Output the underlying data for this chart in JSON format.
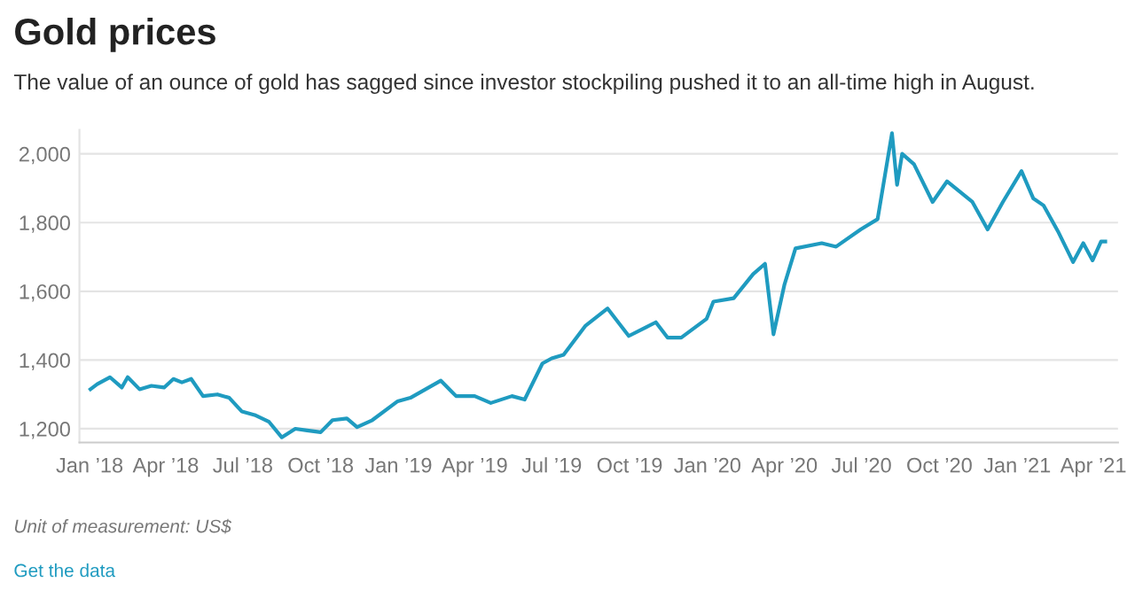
{
  "chart_data": {
    "type": "line",
    "title": "Gold prices",
    "subtitle": "The value of an ounce of gold has sagged since investor stockpiling pushed it to an all-time high in August.",
    "x": [
      "2018-01-02",
      "2018-01-10",
      "2018-01-25",
      "2018-02-08",
      "2018-02-15",
      "2018-03-01",
      "2018-03-15",
      "2018-03-30",
      "2018-04-10",
      "2018-04-20",
      "2018-05-01",
      "2018-05-15",
      "2018-06-01",
      "2018-06-15",
      "2018-06-30",
      "2018-07-15",
      "2018-08-01",
      "2018-08-16",
      "2018-09-01",
      "2018-09-15",
      "2018-10-01",
      "2018-10-15",
      "2018-11-01",
      "2018-11-13",
      "2018-12-01",
      "2018-12-31",
      "2019-01-15",
      "2019-02-20",
      "2019-03-10",
      "2019-04-01",
      "2019-04-20",
      "2019-05-15",
      "2019-05-30",
      "2019-06-20",
      "2019-07-01",
      "2019-07-15",
      "2019-08-10",
      "2019-09-05",
      "2019-09-30",
      "2019-10-20",
      "2019-11-01",
      "2019-11-15",
      "2019-12-01",
      "2019-12-31",
      "2020-01-08",
      "2020-02-01",
      "2020-02-24",
      "2020-03-09",
      "2020-03-19",
      "2020-04-01",
      "2020-04-14",
      "2020-05-15",
      "2020-06-01",
      "2020-06-30",
      "2020-07-20",
      "2020-08-06",
      "2020-08-12",
      "2020-08-18",
      "2020-09-01",
      "2020-09-23",
      "2020-10-10",
      "2020-11-09",
      "2020-11-27",
      "2020-12-15",
      "2021-01-06",
      "2021-01-20",
      "2021-02-01",
      "2021-02-18",
      "2021-03-08",
      "2021-03-20",
      "2021-03-31",
      "2021-04-10",
      "2021-04-15"
    ],
    "series": [
      {
        "color": "#1f9bc0",
        "values": [
          1315,
          1330,
          1350,
          1320,
          1350,
          1315,
          1325,
          1320,
          1345,
          1335,
          1345,
          1295,
          1300,
          1290,
          1250,
          1240,
          1220,
          1175,
          1200,
          1195,
          1190,
          1225,
          1230,
          1205,
          1225,
          1280,
          1290,
          1340,
          1295,
          1295,
          1275,
          1295,
          1285,
          1390,
          1405,
          1415,
          1500,
          1550,
          1470,
          1495,
          1510,
          1465,
          1465,
          1520,
          1570,
          1580,
          1650,
          1680,
          1475,
          1620,
          1725,
          1740,
          1730,
          1780,
          1810,
          2060,
          1910,
          2000,
          1970,
          1860,
          1920,
          1860,
          1780,
          1860,
          1950,
          1870,
          1850,
          1775,
          1685,
          1740,
          1690,
          1745,
          1745
        ]
      }
    ],
    "xlim": [
      "2017-12-20",
      "2021-04-30"
    ],
    "xticks": [
      {
        "value": "2018-01-01",
        "label": "Jan ’18"
      },
      {
        "value": "2018-04-01",
        "label": "Apr ’18"
      },
      {
        "value": "2018-07-01",
        "label": "Jul ’18"
      },
      {
        "value": "2018-10-01",
        "label": "Oct ’18"
      },
      {
        "value": "2019-01-01",
        "label": "Jan ’19"
      },
      {
        "value": "2019-04-01",
        "label": "Apr ’19"
      },
      {
        "value": "2019-07-01",
        "label": "Jul ’19"
      },
      {
        "value": "2019-10-01",
        "label": "Oct ’19"
      },
      {
        "value": "2020-01-01",
        "label": "Jan ’20"
      },
      {
        "value": "2020-04-01",
        "label": "Apr ’20"
      },
      {
        "value": "2020-07-01",
        "label": "Jul ’20"
      },
      {
        "value": "2020-10-01",
        "label": "Oct ’20"
      },
      {
        "value": "2021-01-01",
        "label": "Jan ’21"
      },
      {
        "value": "2021-04-01",
        "label": "Apr ’21"
      }
    ],
    "ylim": [
      1160,
      2070
    ],
    "yticks": [
      {
        "value": 1200,
        "label": "1,200"
      },
      {
        "value": 1400,
        "label": "1,400"
      },
      {
        "value": 1600,
        "label": "1,600"
      },
      {
        "value": 1800,
        "label": "1,800"
      },
      {
        "value": 2000,
        "label": "2,000"
      }
    ],
    "grid": "y",
    "annotations": [
      "Unit of measurement: US$",
      "Get the data"
    ]
  }
}
